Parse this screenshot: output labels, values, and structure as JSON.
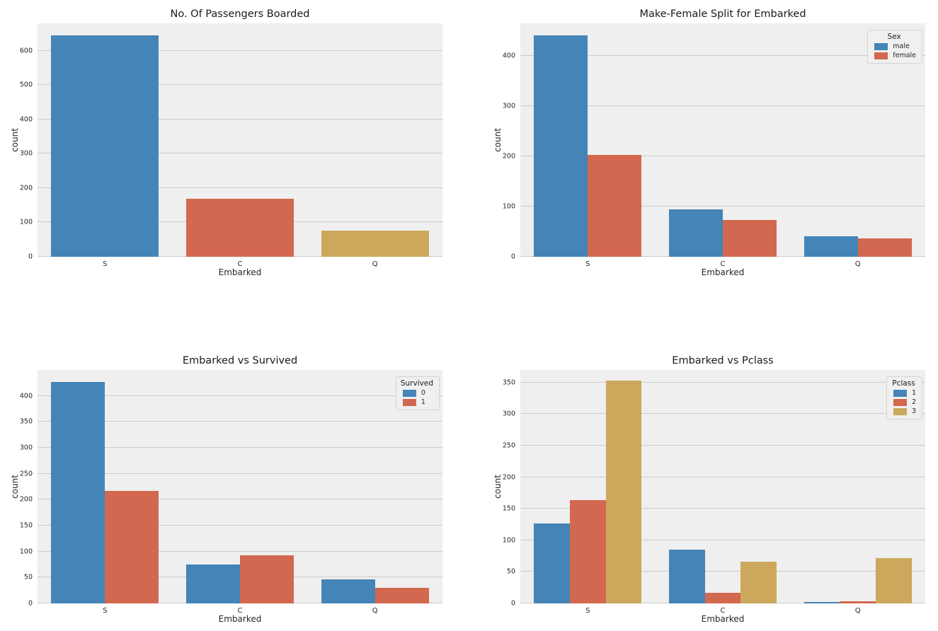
{
  "figure": {
    "background": "#ffffff",
    "axes_background": "#efefef",
    "grid_color": "#cbcbcb",
    "text_color": "#262626",
    "palette": {
      "blue": "#4484b7",
      "red": "#d2684f",
      "gold": "#cba85c"
    }
  },
  "chart_data": [
    {
      "type": "bar",
      "title": "No. Of Passengers Boarded",
      "xlabel": "Embarked",
      "ylabel": "count",
      "categories": [
        "S",
        "C",
        "Q"
      ],
      "series": [
        {
          "name": "count",
          "colors": [
            "#4484b7",
            "#d2684f",
            "#cba85c"
          ],
          "values": [
            644,
            168,
            77
          ]
        }
      ],
      "legend_title": null,
      "ylim": [
        0,
        680
      ],
      "yticks": [
        0,
        100,
        200,
        300,
        400,
        500,
        600
      ],
      "grid": true,
      "legend_position": null
    },
    {
      "type": "bar",
      "title": "Make-Female Split for Embarked",
      "xlabel": "Embarked",
      "ylabel": "count",
      "categories": [
        "S",
        "C",
        "Q"
      ],
      "series": [
        {
          "name": "male",
          "color": "#4484b7",
          "values": [
            441,
            95,
            41
          ]
        },
        {
          "name": "female",
          "color": "#d2684f",
          "values": [
            203,
            73,
            36
          ]
        }
      ],
      "legend_title": "Sex",
      "ylim": [
        0,
        465
      ],
      "yticks": [
        0,
        100,
        200,
        300,
        400
      ],
      "grid": true,
      "legend_position": "upper right"
    },
    {
      "type": "bar",
      "title": "Embarked vs Survived",
      "xlabel": "Embarked",
      "ylabel": "count",
      "categories": [
        "S",
        "C",
        "Q"
      ],
      "series": [
        {
          "name": "0",
          "color": "#4484b7",
          "values": [
            427,
            75,
            47
          ]
        },
        {
          "name": "1",
          "color": "#d2684f",
          "values": [
            217,
            93,
            30
          ]
        }
      ],
      "legend_title": "Survived",
      "ylim": [
        0,
        450
      ],
      "yticks": [
        0,
        50,
        100,
        150,
        200,
        250,
        300,
        350,
        400
      ],
      "grid": true,
      "legend_position": "upper right"
    },
    {
      "type": "bar",
      "title": "Embarked vs Pclass",
      "xlabel": "Embarked",
      "ylabel": "count",
      "categories": [
        "S",
        "C",
        "Q"
      ],
      "series": [
        {
          "name": "1",
          "color": "#4484b7",
          "values": [
            127,
            85,
            2
          ]
        },
        {
          "name": "2",
          "color": "#d2684f",
          "values": [
            164,
            17,
            3
          ]
        },
        {
          "name": "3",
          "color": "#cba85c",
          "values": [
            353,
            66,
            72
          ]
        }
      ],
      "legend_title": "Pclass",
      "ylim": [
        0,
        370
      ],
      "yticks": [
        0,
        50,
        100,
        150,
        200,
        250,
        300,
        350
      ],
      "grid": true,
      "legend_position": "upper right"
    }
  ]
}
